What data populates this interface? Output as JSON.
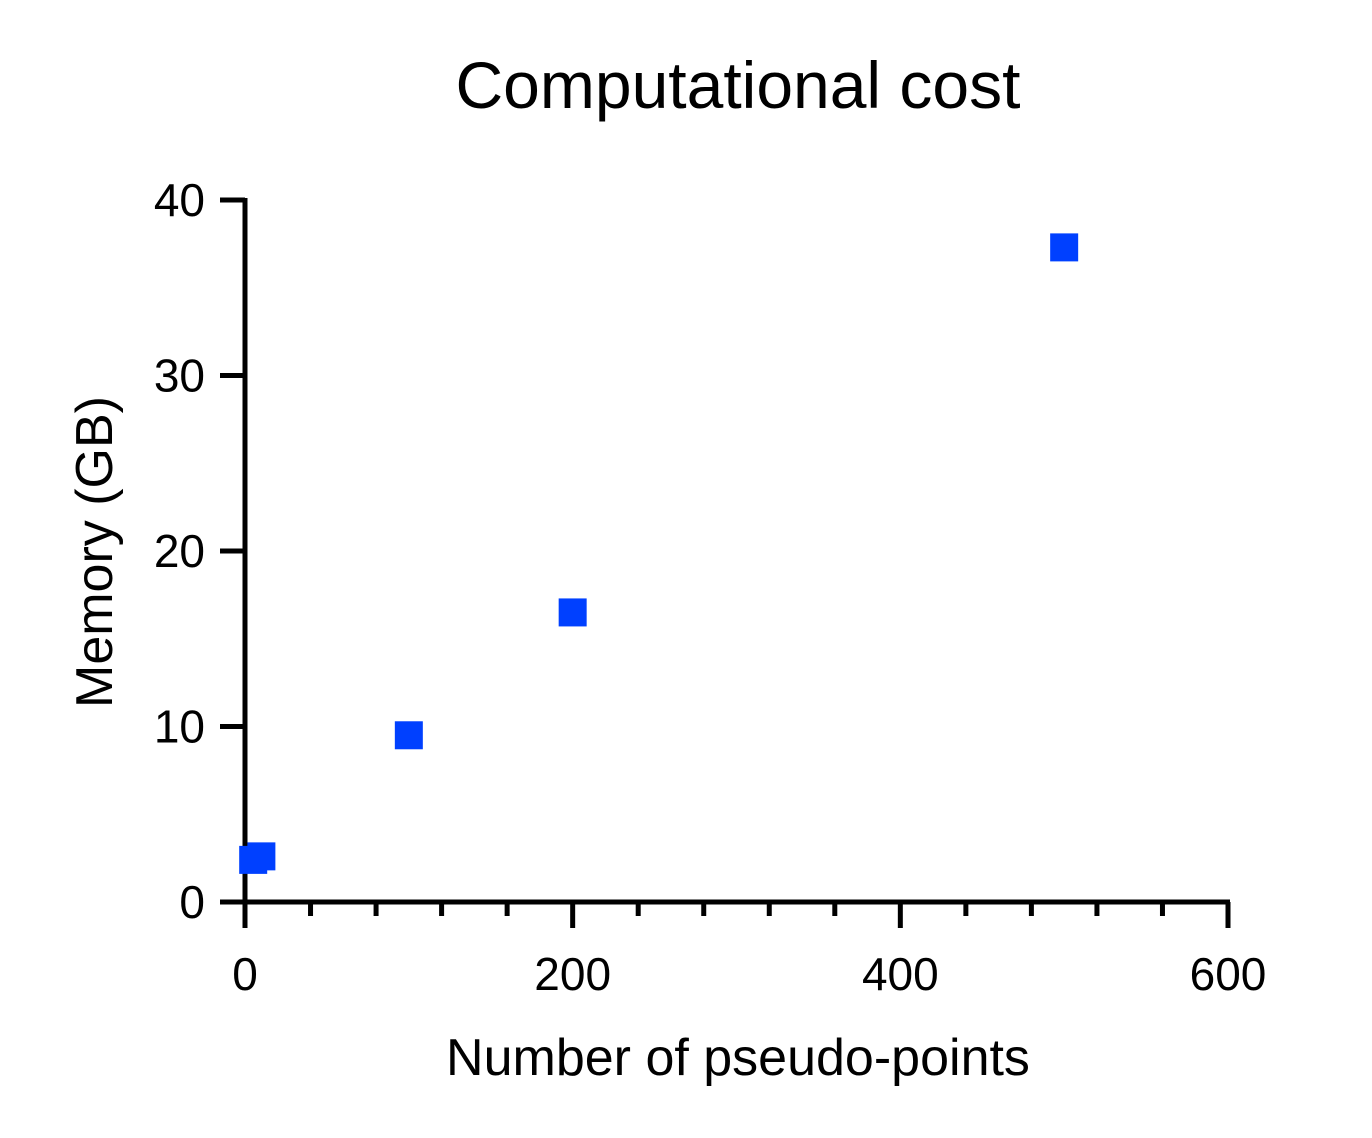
{
  "chart_data": {
    "type": "scatter",
    "title": "Computational cost",
    "xlabel": "Number of pseudo-points",
    "ylabel": "Memory (GB)",
    "xlim": [
      0,
      600
    ],
    "ylim": [
      0,
      40
    ],
    "xticks": [
      0,
      200,
      400,
      600
    ],
    "yticks": [
      0,
      10,
      20,
      30,
      40
    ],
    "x_minor_tick_step": 40,
    "grid": false,
    "legend": "none",
    "marker": "square",
    "color": "#0040ff",
    "points": [
      {
        "x": 5,
        "y": 2.4
      },
      {
        "x": 10,
        "y": 2.6
      },
      {
        "x": 100,
        "y": 9.5
      },
      {
        "x": 200,
        "y": 16.5
      },
      {
        "x": 500,
        "y": 37.3
      }
    ]
  }
}
